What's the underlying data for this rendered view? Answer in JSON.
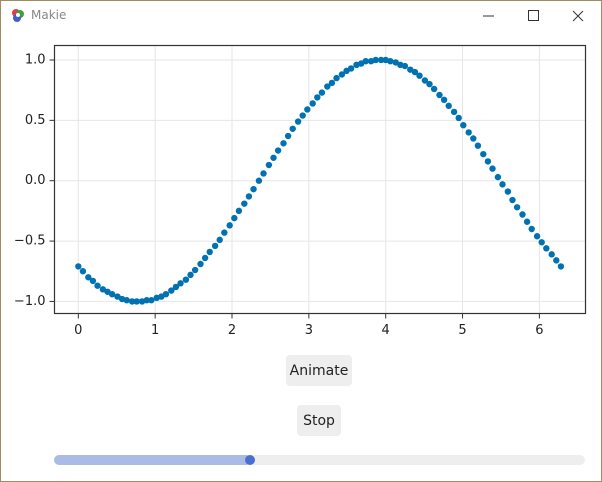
{
  "window": {
    "title": "Makie"
  },
  "chart_data": {
    "type": "scatter",
    "x": [
      0.0,
      0.06,
      0.13,
      0.19,
      0.25,
      0.32,
      0.38,
      0.44,
      0.51,
      0.57,
      0.63,
      0.7,
      0.76,
      0.83,
      0.89,
      0.95,
      1.02,
      1.08,
      1.14,
      1.21,
      1.27,
      1.33,
      1.4,
      1.46,
      1.52,
      1.59,
      1.65,
      1.71,
      1.78,
      1.84,
      1.9,
      1.97,
      2.03,
      2.09,
      2.16,
      2.22,
      2.28,
      2.35,
      2.41,
      2.48,
      2.54,
      2.6,
      2.67,
      2.73,
      2.79,
      2.86,
      2.92,
      2.98,
      3.05,
      3.11,
      3.17,
      3.24,
      3.3,
      3.36,
      3.43,
      3.49,
      3.55,
      3.62,
      3.68,
      3.74,
      3.81,
      3.87,
      3.94,
      4.0,
      4.06,
      4.13,
      4.19,
      4.25,
      4.32,
      4.38,
      4.44,
      4.51,
      4.57,
      4.63,
      4.7,
      4.76,
      4.82,
      4.89,
      4.95,
      5.01,
      5.08,
      5.14,
      5.2,
      5.27,
      5.33,
      5.39,
      5.46,
      5.52,
      5.59,
      5.65,
      5.71,
      5.78,
      5.84,
      5.9,
      5.97,
      6.03,
      6.09,
      6.16,
      6.22,
      6.28
    ],
    "series": [
      {
        "color": "#0072b2",
        "values": [
          -0.71,
          -0.75,
          -0.8,
          -0.83,
          -0.87,
          -0.9,
          -0.92,
          -0.94,
          -0.96,
          -0.98,
          -0.99,
          -1.0,
          -1.0,
          -1.0,
          -0.99,
          -0.99,
          -0.97,
          -0.96,
          -0.94,
          -0.91,
          -0.88,
          -0.85,
          -0.82,
          -0.78,
          -0.74,
          -0.69,
          -0.64,
          -0.59,
          -0.54,
          -0.49,
          -0.43,
          -0.37,
          -0.31,
          -0.25,
          -0.19,
          -0.13,
          -0.07,
          0.0,
          0.06,
          0.13,
          0.19,
          0.25,
          0.31,
          0.37,
          0.43,
          0.49,
          0.54,
          0.59,
          0.64,
          0.69,
          0.73,
          0.78,
          0.81,
          0.85,
          0.88,
          0.91,
          0.93,
          0.96,
          0.97,
          0.99,
          0.99,
          1.0,
          1.0,
          1.0,
          0.99,
          0.98,
          0.96,
          0.95,
          0.92,
          0.9,
          0.87,
          0.83,
          0.8,
          0.76,
          0.71,
          0.67,
          0.62,
          0.57,
          0.52,
          0.46,
          0.4,
          0.35,
          0.29,
          0.22,
          0.16,
          0.1,
          0.03,
          -0.03,
          -0.09,
          -0.16,
          -0.22,
          -0.28,
          -0.34,
          -0.4,
          -0.46,
          -0.51,
          -0.56,
          -0.61,
          -0.66,
          -0.71
        ]
      }
    ],
    "xlim": [
      -0.31,
      6.6
    ],
    "ylim": [
      -1.1,
      1.12
    ],
    "xticks": [
      0,
      1,
      2,
      3,
      4,
      5,
      6
    ],
    "yticks": [
      {
        "value": 1,
        "label": "1.0"
      },
      {
        "value": 0.5,
        "label": "0.5"
      },
      {
        "value": 0,
        "label": "0.0"
      },
      {
        "value": -0.5,
        "label": "−0.5"
      },
      {
        "value": -1,
        "label": "−1.0"
      }
    ],
    "grid": true
  },
  "buttons": [
    "Animate",
    "Stop"
  ]
}
